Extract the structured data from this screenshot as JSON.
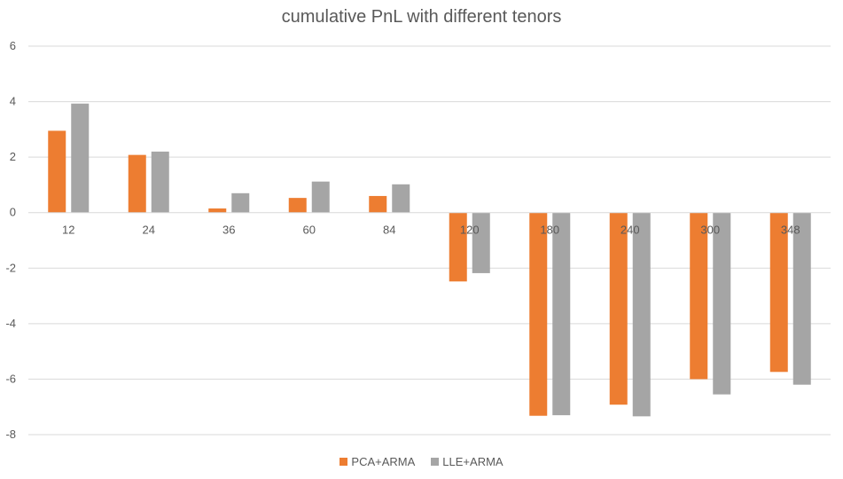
{
  "chart_data": {
    "type": "bar",
    "title": "cumulative PnL with different tenors",
    "xlabel": "",
    "ylabel": "",
    "categories": [
      "12",
      "24",
      "36",
      "60",
      "84",
      "120",
      "180",
      "240",
      "300",
      "348"
    ],
    "series": [
      {
        "name": "PCA+ARMA",
        "color": "#ED7D31",
        "values": [
          2.95,
          2.08,
          0.15,
          0.53,
          0.6,
          -2.48,
          -7.32,
          -6.92,
          -6.0,
          -5.74
        ]
      },
      {
        "name": "LLE+ARMA",
        "color": "#A5A5A5",
        "values": [
          3.93,
          2.2,
          0.7,
          1.12,
          1.02,
          -2.18,
          -7.3,
          -7.34,
          -6.55,
          -6.2
        ]
      }
    ],
    "ylim": [
      -8,
      6
    ],
    "yticks": [
      "6",
      "4",
      "2",
      "0",
      "-2",
      "-4",
      "-6",
      "-8"
    ],
    "grid": true,
    "legend_position": "bottom"
  }
}
